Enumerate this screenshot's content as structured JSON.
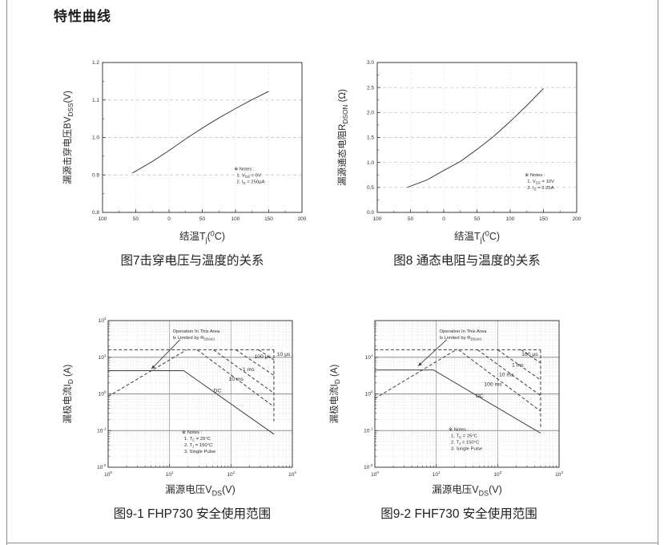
{
  "page": {
    "title": "特性曲线"
  },
  "colors": {
    "curve": "#3d3d3d",
    "grid_major": "#9b9b9b",
    "grid_minor": "#d9d9d9",
    "frame": "#3a3a3a",
    "page_border": "#8c8c8c"
  },
  "chart_data": [
    {
      "id": "fig7",
      "type": "line",
      "caption": "图7击穿电压与温度的关系",
      "xlabel": [
        {
          "t": "结温T"
        },
        {
          "t": "j",
          "sub": true
        },
        {
          "t": "("
        },
        {
          "t": "0",
          "sup": true
        },
        {
          "t": "C)"
        }
      ],
      "ylabel": [
        {
          "t": "漏源击穿电压BV"
        },
        {
          "t": "DSS",
          "sub": true
        },
        {
          "t": "(V)"
        }
      ],
      "xscale": "linear",
      "xlim": [
        -100,
        200
      ],
      "xticks": [
        {
          "v": -100,
          "l": "100"
        },
        {
          "v": -50,
          "l": "50"
        },
        {
          "v": 0,
          "l": "0"
        },
        {
          "v": 50,
          "l": "50"
        },
        {
          "v": 100,
          "l": "100"
        },
        {
          "v": 150,
          "l": "150"
        },
        {
          "v": 200,
          "l": "200"
        }
      ],
      "yscale": "linear",
      "ylim": [
        0.8,
        1.2
      ],
      "yticks": [
        {
          "v": 0.8,
          "l": "0.8"
        },
        {
          "v": 0.9,
          "l": "0.9"
        },
        {
          "v": 1.0,
          "l": "1.0"
        },
        {
          "v": 1.1,
          "l": "1.1"
        },
        {
          "v": 1.2,
          "l": "1.2"
        }
      ],
      "series": [
        {
          "name": "BVDSS-vs-Tj",
          "style": "solid",
          "points": [
            [
              -55,
              0.905
            ],
            [
              -25,
              0.936
            ],
            [
              0,
              0.965
            ],
            [
              25,
              0.996
            ],
            [
              50,
              1.025
            ],
            [
              75,
              1.052
            ],
            [
              100,
              1.077
            ],
            [
              125,
              1.101
            ],
            [
              150,
              1.123
            ]
          ]
        }
      ],
      "notes": {
        "fx": 0.66,
        "fy": 0.72,
        "lines": [
          [
            {
              "t": "※ Notes :"
            }
          ],
          [
            {
              "t": "1. V"
            },
            {
              "t": "GS",
              "sub": true
            },
            {
              "t": " = 0V"
            }
          ],
          [
            {
              "t": "2. I"
            },
            {
              "t": "D",
              "sub": true
            },
            {
              "t": " = 250μA"
            }
          ]
        ]
      }
    },
    {
      "id": "fig8",
      "type": "line",
      "caption": "图8 通态电阻与温度的关系",
      "xlabel": [
        {
          "t": "结温T"
        },
        {
          "t": "j",
          "sub": true
        },
        {
          "t": "("
        },
        {
          "t": "0",
          "sup": true
        },
        {
          "t": "C)"
        }
      ],
      "ylabel": [
        {
          "t": "漏源通态电阻R"
        },
        {
          "t": "DSON",
          "sub": true
        },
        {
          "t": " (Ω)"
        }
      ],
      "xscale": "linear",
      "xlim": [
        -100,
        200
      ],
      "xticks": [
        {
          "v": -100,
          "l": "100"
        },
        {
          "v": -50,
          "l": "50"
        },
        {
          "v": 0,
          "l": "0"
        },
        {
          "v": 50,
          "l": "50"
        },
        {
          "v": 100,
          "l": "100"
        },
        {
          "v": 150,
          "l": "150"
        },
        {
          "v": 200,
          "l": "200"
        }
      ],
      "yscale": "linear",
      "ylim": [
        0.0,
        3.0
      ],
      "yticks": [
        {
          "v": 0.0,
          "l": "0.0"
        },
        {
          "v": 0.5,
          "l": "0.5"
        },
        {
          "v": 1.0,
          "l": "1.0"
        },
        {
          "v": 1.5,
          "l": "1.5"
        },
        {
          "v": 2.0,
          "l": "2.0"
        },
        {
          "v": 2.5,
          "l": "2.5"
        },
        {
          "v": 3.0,
          "l": "3.0"
        }
      ],
      "series": [
        {
          "name": "RDSON-vs-Tj",
          "style": "solid",
          "points": [
            [
              -55,
              0.5
            ],
            [
              -25,
              0.65
            ],
            [
              0,
              0.84
            ],
            [
              25,
              1.02
            ],
            [
              50,
              1.26
            ],
            [
              75,
              1.52
            ],
            [
              100,
              1.82
            ],
            [
              125,
              2.14
            ],
            [
              150,
              2.48
            ]
          ]
        }
      ],
      "notes": {
        "fx": 0.74,
        "fy": 0.76,
        "lines": [
          [
            {
              "t": "※ Notes :"
            }
          ],
          [
            {
              "t": "1. V"
            },
            {
              "t": "GS",
              "sub": true
            },
            {
              "t": " = 10V"
            }
          ],
          [
            {
              "t": "2. I"
            },
            {
              "t": "D",
              "sub": true
            },
            {
              "t": " = 2.25A"
            }
          ]
        ]
      }
    },
    {
      "id": "fig9_1",
      "type": "line",
      "caption": "图9-1 FHP730 安全使用范围",
      "xlabel": [
        {
          "t": "漏源电压V"
        },
        {
          "t": "DS",
          "sub": true
        },
        {
          "t": "(V)"
        }
      ],
      "ylabel": [
        {
          "t": "漏极电流I"
        },
        {
          "t": "D",
          "sub": true
        },
        {
          "t": " (A)"
        }
      ],
      "xscale": "log",
      "xlim": [
        1,
        1000
      ],
      "xticks": [
        {
          "v": 1,
          "exp": "0"
        },
        {
          "v": 10,
          "exp": "1"
        },
        {
          "v": 100,
          "exp": "2"
        },
        {
          "v": 1000,
          "exp": "3"
        }
      ],
      "yscale": "log",
      "ylim": [
        0.01,
        100
      ],
      "yticks": [
        {
          "v": 100,
          "exp": "2"
        },
        {
          "v": 10,
          "exp": "1"
        },
        {
          "v": 1,
          "exp": "0"
        },
        {
          "v": 0.1,
          "exp": "-1"
        },
        {
          "v": 0.01,
          "exp": "-2"
        }
      ],
      "series": [
        {
          "name": "rdson-limit-line",
          "style": "dashed",
          "points": [
            [
              1,
              0.85
            ],
            [
              19,
              16
            ]
          ]
        },
        {
          "name": "pulsed-current-limit",
          "style": "dashed",
          "points": [
            [
              1,
              16
            ],
            [
              500,
              16
            ]
          ]
        },
        {
          "name": "bvdss-limit-line",
          "style": "dashed",
          "points": [
            [
              500,
              16
            ],
            [
              500,
              0.18
            ]
          ]
        },
        {
          "name": "soa-10us",
          "style": "dashed",
          "points": [
            [
              280,
              16
            ],
            [
              500,
              8.5
            ]
          ],
          "label": {
            "t": "10 μs",
            "x": 560,
            "y": 11
          }
        },
        {
          "name": "soa-100us",
          "style": "dashed",
          "points": [
            [
              120,
              16
            ],
            [
              500,
              3.2
            ]
          ],
          "label": {
            "t": "100 μs",
            "x": 240,
            "y": 9.5
          }
        },
        {
          "name": "soa-1ms",
          "style": "dashed",
          "points": [
            [
              52,
              16
            ],
            [
              500,
              1.05
            ]
          ],
          "label": {
            "t": "1 ms",
            "x": 155,
            "y": 4.2
          }
        },
        {
          "name": "soa-10ms",
          "style": "dashed",
          "points": [
            [
              28,
              16
            ],
            [
              500,
              0.45
            ]
          ],
          "label": {
            "t": "10 ms",
            "x": 92,
            "y": 2.3
          }
        },
        {
          "name": "soa-dc",
          "style": "solid",
          "points": [
            [
              1,
              4.3
            ],
            [
              17,
              4.3
            ],
            [
              500,
              0.08
            ]
          ],
          "label": {
            "t": "DC",
            "x": 52,
            "y": 1.1
          }
        }
      ],
      "annotation": {
        "lines": [
          [
            {
              "t": "Operation In This Area"
            }
          ],
          [
            {
              "t": "Is Limited by R"
            },
            {
              "t": "DS(on)",
              "sub": true
            }
          ]
        ],
        "fx": 0.35,
        "fy": 0.05,
        "arrow": {
          "x1f": 0.39,
          "y1f": 0.13,
          "x2f": 0.235,
          "y2f": 0.33
        }
      },
      "notes": {
        "fx": 0.4,
        "fy": 0.77,
        "lines": [
          [
            {
              "t": "※ Notes :"
            }
          ],
          [
            {
              "t": "1. T"
            },
            {
              "t": "C",
              "sub": true
            },
            {
              "t": " = 25°C"
            }
          ],
          [
            {
              "t": "2. T"
            },
            {
              "t": "J",
              "sub": true
            },
            {
              "t": " = 150°C"
            }
          ],
          [
            {
              "t": "3. Single Pulse"
            }
          ]
        ]
      }
    },
    {
      "id": "fig9_2",
      "type": "line",
      "caption": "图9-2 FHF730 安全使用范围",
      "xlabel": [
        {
          "t": "漏源电压V"
        },
        {
          "t": "DS",
          "sub": true
        },
        {
          "t": "(V)"
        }
      ],
      "ylabel": [
        {
          "t": "漏极电流I"
        },
        {
          "t": "D",
          "sub": true
        },
        {
          "t": " (A)"
        }
      ],
      "xscale": "log",
      "xlim": [
        1,
        1000
      ],
      "xticks": [
        {
          "v": 1,
          "exp": "0"
        },
        {
          "v": 10,
          "exp": "1"
        },
        {
          "v": 100,
          "exp": "2"
        },
        {
          "v": 1000,
          "exp": "3"
        }
      ],
      "yscale": "log",
      "ylim": [
        0.01,
        100
      ],
      "yticks": [
        {
          "v": 100,
          "exp": null
        },
        {
          "v": 10,
          "exp": "1"
        },
        {
          "v": 1,
          "exp": "0"
        },
        {
          "v": 0.1,
          "exp": "-1"
        },
        {
          "v": 0.01,
          "exp": "-2"
        }
      ],
      "series": [
        {
          "name": "rdson-limit-line",
          "style": "dashed",
          "points": [
            [
              1,
              0.75
            ],
            [
              21,
              16
            ]
          ]
        },
        {
          "name": "pulsed-current-limit",
          "style": "dashed",
          "points": [
            [
              1,
              16
            ],
            [
              500,
              16
            ]
          ]
        },
        {
          "name": "bvdss-limit-line",
          "style": "dashed",
          "points": [
            [
              500,
              16
            ],
            [
              500,
              0.12
            ]
          ]
        },
        {
          "name": "soa-100us",
          "style": "dashed",
          "points": [
            [
              240,
              16
            ],
            [
              500,
              7
            ]
          ],
          "label": {
            "t": "100 μs",
            "x": 245,
            "y": 11
          }
        },
        {
          "name": "soa-1ms",
          "style": "dashed",
          "points": [
            [
              100,
              16
            ],
            [
              500,
              2.4
            ]
          ],
          "label": {
            "t": "1 ms",
            "x": 170,
            "y": 5.5
          }
        },
        {
          "name": "soa-10ms",
          "style": "dashed",
          "points": [
            [
              47,
              16
            ],
            [
              500,
              0.9
            ]
          ],
          "label": {
            "t": "10 ms",
            "x": 105,
            "y": 3.0
          }
        },
        {
          "name": "soa-100ms",
          "style": "dashed",
          "points": [
            [
              23,
              16
            ],
            [
              500,
              0.34
            ]
          ],
          "label": {
            "t": "100 ms",
            "x": 60,
            "y": 1.65
          }
        },
        {
          "name": "soa-dc",
          "style": "solid",
          "points": [
            [
              1,
              4.5
            ],
            [
              9,
              4.5
            ],
            [
              500,
              0.085
            ]
          ],
          "label": {
            "t": "DC",
            "x": 44,
            "y": 0.8
          }
        }
      ],
      "annotation": {
        "lines": [
          [
            {
              "t": "Operation In This Area"
            }
          ],
          [
            {
              "t": "Is Limited by R"
            },
            {
              "t": "DS(on)",
              "sub": true
            }
          ]
        ],
        "fx": 0.35,
        "fy": 0.05,
        "arrow": {
          "x1f": 0.39,
          "y1f": 0.13,
          "x2f": 0.235,
          "y2f": 0.31
        }
      },
      "notes": {
        "fx": 0.4,
        "fy": 0.75,
        "lines": [
          [
            {
              "t": "※ Notes :"
            }
          ],
          [
            {
              "t": "1. T"
            },
            {
              "t": "C",
              "sub": true
            },
            {
              "t": " = 25°C"
            }
          ],
          [
            {
              "t": "2. T"
            },
            {
              "t": "J",
              "sub": true
            },
            {
              "t": " = 150°C"
            }
          ],
          [
            {
              "t": "3. Single Pulse"
            }
          ]
        ]
      }
    }
  ]
}
